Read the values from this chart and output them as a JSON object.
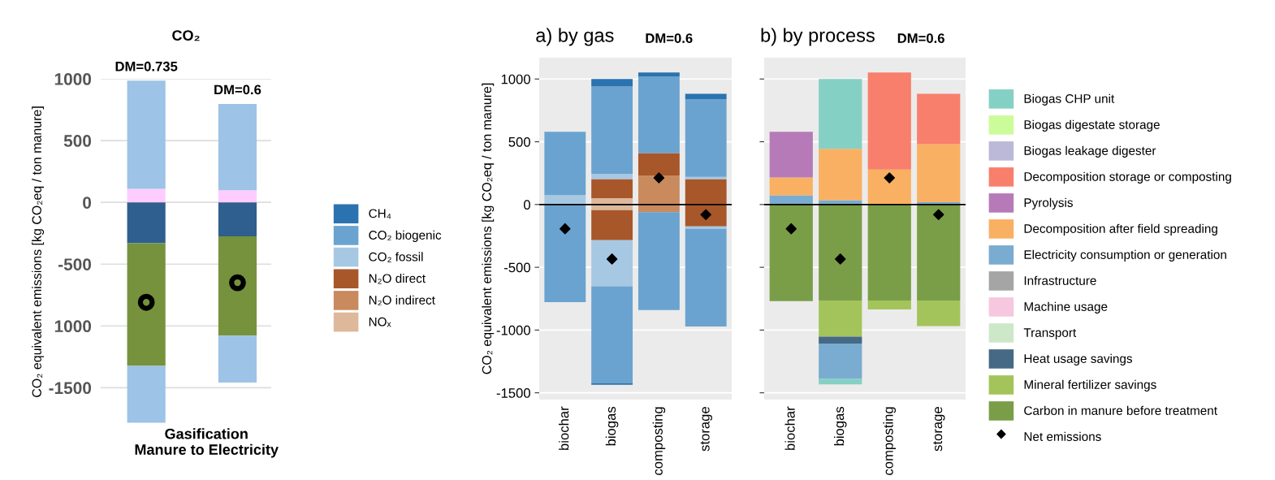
{
  "chart_data": [
    {
      "type": "bar",
      "stacked": true,
      "title": "CO₂",
      "xlabel": "Gasification\nManure to Electricity",
      "ylabel": "CO₂ equivalent emissions [kg CO₂eq / ton manure]",
      "categories": [
        null,
        null
      ],
      "ylim": [
        -1800,
        1000
      ],
      "yticks": [
        1000,
        500,
        0,
        -500,
        {
          "value": -1000,
          "label": "1000"
        },
        -1500
      ],
      "grid": "y",
      "marker": "circle",
      "annotations": [
        "DM=0.735",
        "DM=0.6"
      ],
      "series": [
        {
          "color": "#ffccff",
          "values": [
            110,
            98
          ]
        },
        {
          "color": "#9dc3e6",
          "values": [
            875,
            699
          ]
        },
        {
          "color": "#2e5f8f",
          "values": [
            -331,
            -275
          ]
        },
        {
          "color": "#76923c",
          "values": [
            -993,
            -803
          ]
        },
        {
          "color": "#9dc3e6",
          "values": [
            -460,
            -380
          ]
        },
        {
          "type": "scatter",
          "color": "#000000",
          "values": [
            -809,
            -650
          ]
        }
      ]
    },
    {
      "type": "bar",
      "stacked": true,
      "title": "a) by gas",
      "subtitle": "DM=0.6",
      "ylabel": "CO₂ equivalent emissions [kg CO₂eq / ton manure]",
      "categories": [
        "biochar",
        "biogas",
        "composting",
        "storage"
      ],
      "ylim": [
        -1554,
        1170
      ],
      "yticks": [
        1000,
        500,
        0,
        -500,
        -1000,
        -1500
      ],
      "grid": "y",
      "legend": "left",
      "marker": "diamond",
      "ref_lines": [
        {
          "axis": "y",
          "value": 0,
          "color": "#000000"
        }
      ],
      "series": [
        {
          "name": "NOₓ",
          "color": "#ddb89a",
          "values": [
            null,
            50,
            null,
            null
          ]
        },
        {
          "name": "N₂O indirect",
          "color": "#c98a5e",
          "values": [
            null,
            null,
            231,
            null
          ]
        },
        {
          "name": "N₂O direct",
          "color": "#a8572a",
          "values": [
            null,
            153,
            179,
            203
          ]
        },
        {
          "name": "CO₂ fossil",
          "color": "#a7c8e3",
          "values": [
            75,
            42,
            null,
            17
          ]
        },
        {
          "name": "CO₂ biogenic",
          "color": "#6aa3cf",
          "values": [
            505,
            695,
            611,
            620
          ]
        },
        {
          "name": "CH₄",
          "color": "#2b73b0",
          "values": [
            null,
            60,
            31,
            42
          ]
        },
        {
          "color": "#ddb89a",
          "values": [
            null,
            -45,
            null,
            null
          ]
        },
        {
          "color": "#c98a5e",
          "values": [
            null,
            null,
            -61,
            null
          ]
        },
        {
          "color": "#a8572a",
          "values": [
            null,
            -240,
            null,
            -175
          ]
        },
        {
          "color": "#a7c8e3",
          "values": [
            null,
            -366,
            null,
            -18
          ]
        },
        {
          "color": "#6aa3cf",
          "values": [
            -778,
            -774,
            -779,
            -779
          ]
        },
        {
          "color": "#2b73b0",
          "values": [
            null,
            -11,
            null,
            null
          ]
        },
        {
          "type": "scatter",
          "color": "#000000",
          "values": [
            -193,
            -434,
            212,
            -80
          ]
        }
      ]
    },
    {
      "type": "bar",
      "stacked": true,
      "title": "b) by process",
      "subtitle": "DM=0.6",
      "categories": [
        "biochar",
        "biogas",
        "composting",
        "storage"
      ],
      "ylim": [
        -1554,
        1170
      ],
      "yticks": [
        1000,
        500,
        0,
        -500,
        -1000,
        -1500
      ],
      "tick_labels": "x",
      "grid": "y",
      "legend": "right",
      "marker": "diamond",
      "ref_lines": [
        {
          "axis": "y",
          "value": 0,
          "color": "#000000"
        }
      ],
      "series": [
        {
          "name": "Carbon in manure before treatment",
          "color": "#7a9e48",
          "values": [
            -769,
            -764,
            -764,
            -764
          ]
        },
        {
          "name": "Mineral fertilizer savings",
          "color": "#a3c45a",
          "values": [
            null,
            -288,
            -71,
            -205
          ]
        },
        {
          "name": "Heat usage savings",
          "color": "#466a85",
          "values": [
            null,
            -56,
            null,
            null
          ]
        },
        {
          "name": "Transport",
          "color": "#cde8c8",
          "values": [
            null,
            null,
            null,
            null
          ]
        },
        {
          "name": "Machine usage",
          "color": "#f7c7df",
          "values": [
            null,
            null,
            null,
            null
          ]
        },
        {
          "name": "Infrastructure",
          "color": "#a5a5a5",
          "values": [
            null,
            null,
            null,
            null
          ]
        },
        {
          "name": "Electricity consumption or generation",
          "color": "#7aabd0",
          "values": [
            73,
            -281,
            null,
            19
          ]
        },
        {
          "color": "#7aabd0",
          "values": [
            null,
            35,
            null,
            null
          ]
        },
        {
          "name": "Decomposition after field spreading",
          "color": "#f9b062",
          "values": [
            142,
            408,
            278,
            462
          ]
        },
        {
          "name": "Pyrolysis",
          "color": "#b77ab8",
          "values": [
            365,
            null,
            null,
            null
          ]
        },
        {
          "name": "Decomposition storage or composting",
          "color": "#f87f6c",
          "values": [
            null,
            null,
            774,
            401
          ]
        },
        {
          "name": "Biogas leakage digester",
          "color": "#bbb8d8",
          "values": [
            null,
            null,
            null,
            null
          ]
        },
        {
          "name": "Biogas digestate storage",
          "color": "#ccfc99",
          "values": [
            null,
            null,
            null,
            null
          ]
        },
        {
          "name": "Biogas CHP unit",
          "color": "#85d0c4",
          "values": [
            null,
            557,
            null,
            null
          ]
        },
        {
          "color": "#85d0c4",
          "values": [
            null,
            -43,
            null,
            null
          ]
        },
        {
          "type": "scatter",
          "name": "Net emissions",
          "color": "#000000",
          "values": [
            -193,
            -434,
            212,
            -80
          ]
        }
      ]
    }
  ]
}
